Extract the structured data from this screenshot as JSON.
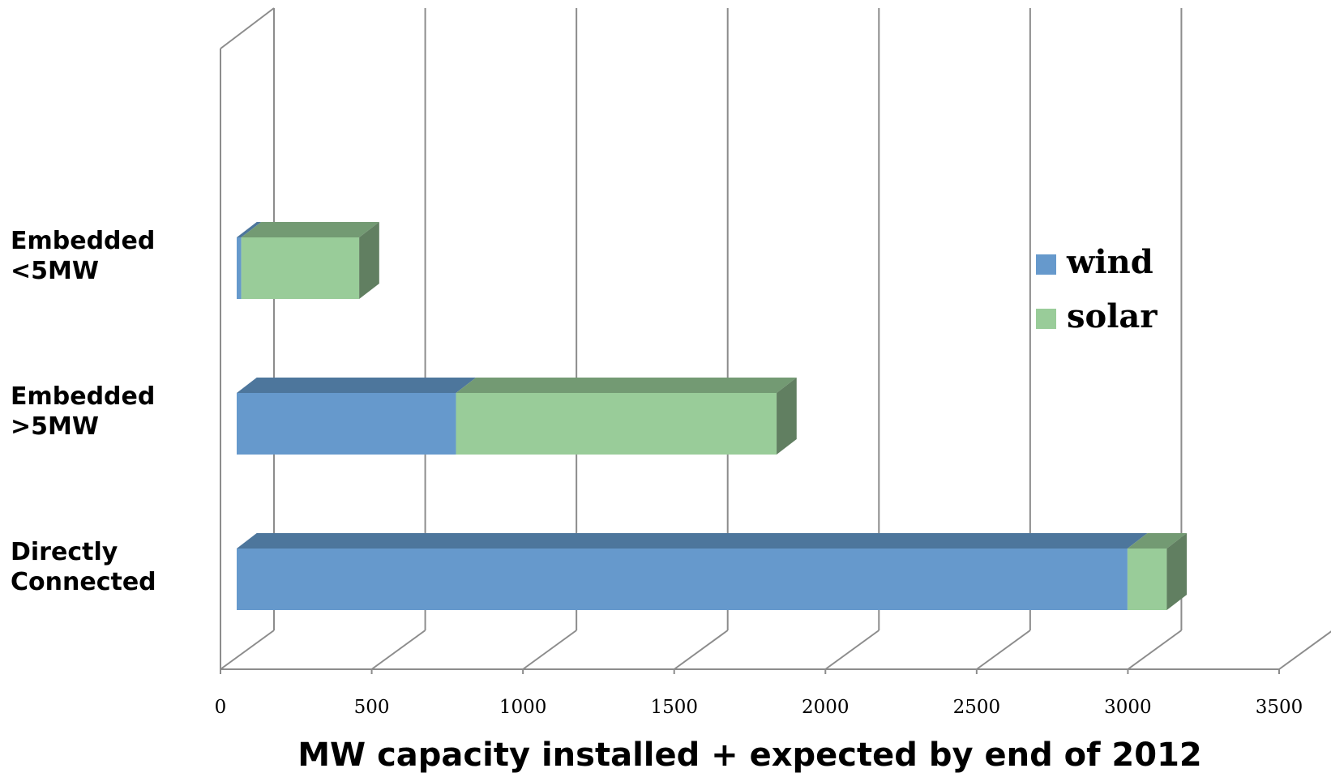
{
  "chart_data": {
    "type": "bar",
    "orientation": "horizontal",
    "stacked": true,
    "style_3d": true,
    "categories": [
      "Embedded <5MW",
      "Embedded >5MW",
      "Directly Connected"
    ],
    "category_lines": [
      [
        "Embedded",
        "<5MW"
      ],
      [
        "Embedded",
        ">5MW"
      ],
      [
        "Directly",
        "Connected"
      ]
    ],
    "series": [
      {
        "name": "wind",
        "values": [
          15,
          725,
          2945
        ],
        "color": "#6699cc",
        "top_color": "#4d769c"
      },
      {
        "name": "solar",
        "values": [
          390,
          1060,
          130
        ],
        "color": "#99cc99",
        "top_color": "#739a73",
        "side_color": "#617f61"
      }
    ],
    "xlabel": "MW capacity installed + expected by end of 2012",
    "xlim": [
      0,
      3500
    ],
    "xticks": [
      "0",
      "500",
      "1000",
      "1500",
      "2000",
      "2500",
      "3000",
      "3500"
    ],
    "grid": true,
    "legend_position": "right"
  }
}
